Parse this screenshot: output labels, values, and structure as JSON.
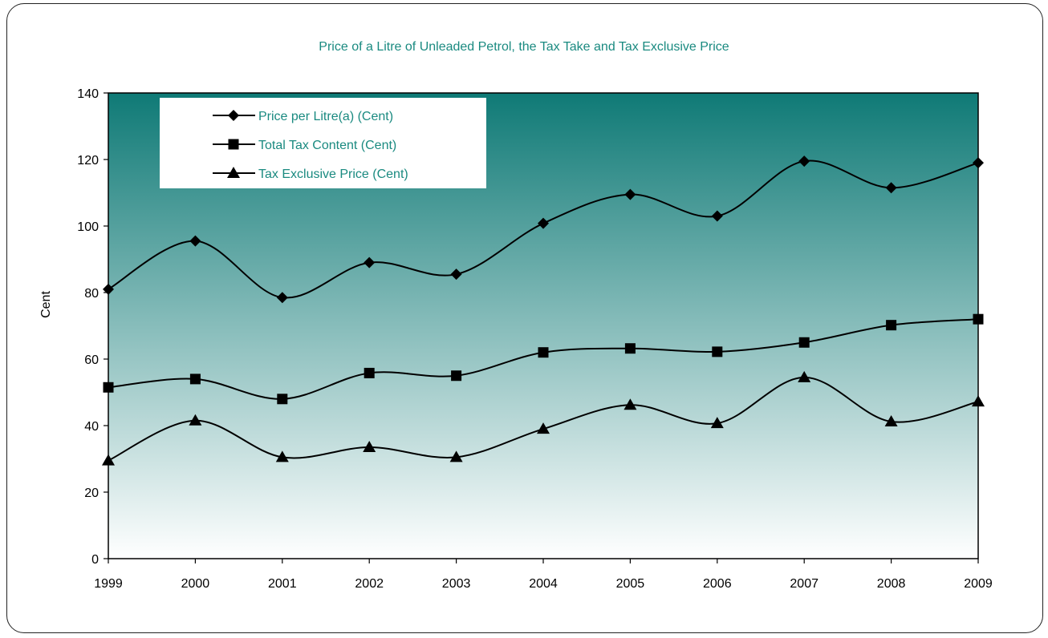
{
  "chart_data": {
    "type": "line",
    "title": "Price of a Litre of Unleaded Petrol, the Tax Take and Tax Exclusive Price",
    "xlabel": "",
    "ylabel": "Cent",
    "ylim": [
      0,
      140
    ],
    "yticks": [
      0,
      20,
      40,
      60,
      80,
      100,
      120,
      140
    ],
    "categories": [
      "1999",
      "2000",
      "2001",
      "2002",
      "2003",
      "2004",
      "2005",
      "2006",
      "2007",
      "2008",
      "2009"
    ],
    "series": [
      {
        "name": "Price per Litre(a) (Cent)",
        "marker": "diamond",
        "values": [
          81,
          95.5,
          78.5,
          89,
          85.5,
          100.8,
          109.5,
          103,
          119.5,
          111.5,
          119
        ]
      },
      {
        "name": "Total Tax Content (Cent)",
        "marker": "square",
        "values": [
          51.5,
          54,
          48,
          55.8,
          55,
          62,
          63.2,
          62.2,
          65,
          70.2,
          72
        ]
      },
      {
        "name": "Tax Exclusive Price (Cent)",
        "marker": "triangle",
        "values": [
          29.5,
          41.5,
          30.5,
          33.5,
          30.5,
          39,
          46.2,
          40.7,
          54.5,
          41.2,
          47.2
        ]
      }
    ],
    "grid": false,
    "legend_position": "top-left",
    "colors": {
      "plot_top": "#0f7a76",
      "plot_bottom": "#ffffff",
      "title": "#1a8a80",
      "line": "#000000"
    }
  }
}
